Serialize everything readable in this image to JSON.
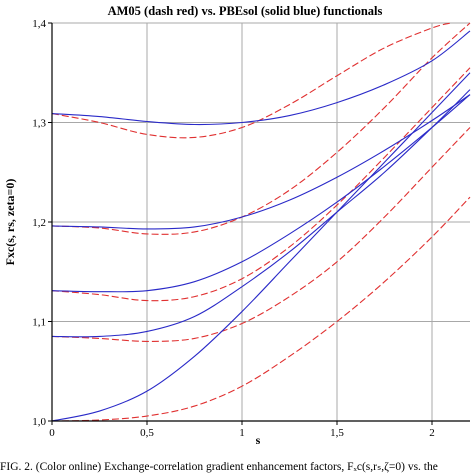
{
  "chart_data": {
    "type": "line",
    "title": "AM05 (dash red) vs. PBEsol (solid blue) functionals",
    "xlabel": "s",
    "ylabel": "Fxc(s, rs, zeta=0)",
    "xlim": [
      0,
      2.2
    ],
    "ylim": [
      1.0,
      1.4
    ],
    "grid": true,
    "x_ticks": [
      0,
      0.5,
      1,
      1.5,
      2
    ],
    "x_tick_labels": [
      "0",
      "0,5",
      "1",
      "1,5",
      "2"
    ],
    "y_ticks": [
      1.0,
      1.1,
      1.2,
      1.3,
      1.4
    ],
    "y_tick_labels": [
      "1,0",
      "1,1",
      "1,2",
      "1,3",
      "1,4"
    ],
    "series_style": {
      "pbesol": {
        "color": "#2a2ac8",
        "dash": "solid"
      },
      "am05": {
        "color": "#e03030",
        "dash": "dashed"
      }
    },
    "series": [
      {
        "group": "pbesol",
        "x": [
          0,
          0.25,
          0.5,
          0.75,
          1.0,
          1.25,
          1.5,
          1.75,
          2.0,
          2.2
        ],
        "y": [
          1.0,
          1.01,
          1.03,
          1.065,
          1.11,
          1.16,
          1.21,
          1.26,
          1.31,
          1.35
        ]
      },
      {
        "group": "pbesol",
        "x": [
          0,
          0.25,
          0.5,
          0.75,
          1.0,
          1.25,
          1.5,
          1.75,
          2.0,
          2.2
        ],
        "y": [
          1.085,
          1.085,
          1.09,
          1.105,
          1.135,
          1.17,
          1.21,
          1.25,
          1.295,
          1.333
        ]
      },
      {
        "group": "pbesol",
        "x": [
          0,
          0.25,
          0.5,
          0.75,
          1.0,
          1.25,
          1.5,
          1.75,
          2.0,
          2.2
        ],
        "y": [
          1.131,
          1.13,
          1.131,
          1.14,
          1.16,
          1.188,
          1.22,
          1.256,
          1.295,
          1.328
        ]
      },
      {
        "group": "pbesol",
        "x": [
          0,
          0.25,
          0.5,
          0.75,
          1.0,
          1.25,
          1.5,
          1.75,
          2.0,
          2.2
        ],
        "y": [
          1.196,
          1.195,
          1.193,
          1.195,
          1.205,
          1.222,
          1.245,
          1.272,
          1.302,
          1.328
        ]
      },
      {
        "group": "pbesol",
        "x": [
          0,
          0.25,
          0.5,
          0.75,
          1.0,
          1.25,
          1.5,
          1.75,
          2.0,
          2.2
        ],
        "y": [
          1.309,
          1.306,
          1.301,
          1.298,
          1.3,
          1.307,
          1.32,
          1.338,
          1.362,
          1.392
        ]
      },
      {
        "group": "am05",
        "x": [
          0,
          0.25,
          0.5,
          0.75,
          1.0,
          1.25,
          1.5,
          1.75,
          2.0,
          2.2
        ],
        "y": [
          1.0,
          1.001,
          1.005,
          1.015,
          1.035,
          1.065,
          1.1,
          1.14,
          1.185,
          1.225
        ]
      },
      {
        "group": "am05",
        "x": [
          0,
          0.25,
          0.5,
          0.75,
          1.0,
          1.25,
          1.5,
          1.75,
          2.0,
          2.2
        ],
        "y": [
          1.085,
          1.083,
          1.08,
          1.083,
          1.098,
          1.125,
          1.16,
          1.205,
          1.255,
          1.295
        ]
      },
      {
        "group": "am05",
        "x": [
          0,
          0.25,
          0.5,
          0.75,
          1.0,
          1.25,
          1.5,
          1.75,
          2.0,
          2.2
        ],
        "y": [
          1.131,
          1.127,
          1.121,
          1.125,
          1.143,
          1.175,
          1.217,
          1.265,
          1.315,
          1.355
        ]
      },
      {
        "group": "am05",
        "x": [
          0,
          0.25,
          0.5,
          0.75,
          1.0,
          1.25,
          1.5,
          1.75,
          2.0,
          2.2
        ],
        "y": [
          1.196,
          1.194,
          1.188,
          1.19,
          1.205,
          1.232,
          1.27,
          1.315,
          1.365,
          1.4
        ]
      },
      {
        "group": "am05",
        "x": [
          0,
          0.25,
          0.5,
          0.75,
          1.0,
          1.25,
          1.5,
          1.75,
          2.0,
          2.1
        ],
        "y": [
          1.309,
          1.3,
          1.288,
          1.285,
          1.295,
          1.318,
          1.347,
          1.375,
          1.395,
          1.4
        ]
      }
    ]
  },
  "caption": "FIG. 2. (Color online) Exchange-correlation gradient enhancement factors, Fₓc(s,rₛ,ζ=0) vs. the"
}
